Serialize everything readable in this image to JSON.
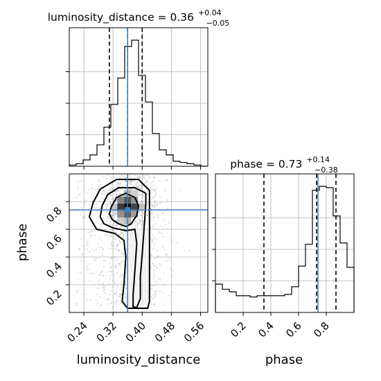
{
  "colors": {
    "truth": "#3a7ebf",
    "hist": "#000000",
    "grid": "#b0b0b0",
    "density": "#000000"
  },
  "chart_data": {
    "type": "corner",
    "parameters": [
      {
        "name": "luminosity_distance",
        "title": "luminosity_distance = 0.36",
        "upper": "+0.04",
        "lower": "−0.05",
        "range": [
          0.2,
          0.58
        ],
        "ticks": [
          "0.24",
          "0.32",
          "0.40",
          "0.48",
          "0.56"
        ],
        "tick_values": [
          0.24,
          0.32,
          0.4,
          0.48,
          0.56
        ],
        "median": 0.36,
        "quantiles": [
          0.31,
          0.36,
          0.4
        ],
        "truth": 0.36,
        "hist_bins": [
          0.2,
          0.219,
          0.238,
          0.257,
          0.276,
          0.295,
          0.314,
          0.333,
          0.352,
          0.371,
          0.39,
          0.409,
          0.428,
          0.447,
          0.466,
          0.485,
          0.504,
          0.523,
          0.542,
          0.561,
          0.58
        ],
        "hist_counts": [
          0.01,
          0.02,
          0.05,
          0.09,
          0.17,
          0.31,
          0.49,
          0.7,
          0.95,
          1.0,
          0.72,
          0.51,
          0.26,
          0.13,
          0.09,
          0.04,
          0.03,
          0.02,
          0.01,
          0.0
        ]
      },
      {
        "name": "phase",
        "title": "phase = 0.73",
        "upper": "+0.14",
        "lower": "−0.38",
        "range": [
          0.0,
          1.0
        ],
        "ticks": [
          "0.2",
          "0.4",
          "0.6",
          "0.8"
        ],
        "tick_values": [
          0.2,
          0.4,
          0.6,
          0.8
        ],
        "median": 0.73,
        "quantiles": [
          0.35,
          0.73,
          0.87
        ],
        "truth": 0.74,
        "hist_bins": [
          0.0,
          0.05,
          0.1,
          0.15,
          0.2,
          0.25,
          0.3,
          0.35,
          0.4,
          0.45,
          0.5,
          0.55,
          0.6,
          0.65,
          0.7,
          0.75,
          0.8,
          0.85,
          0.9,
          0.95,
          1.0
        ],
        "hist_counts": [
          0.22,
          0.18,
          0.16,
          0.13,
          0.13,
          0.12,
          0.13,
          0.13,
          0.13,
          0.13,
          0.14,
          0.2,
          0.36,
          0.53,
          0.95,
          0.98,
          0.97,
          0.75,
          0.54,
          0.35
        ]
      }
    ],
    "joint_y_ticks": [
      "0.2",
      "0.4",
      "0.6",
      "0.8"
    ],
    "joint_y_tick_values": [
      0.2,
      0.4,
      0.6,
      0.8
    ],
    "joint_y_range": [
      0.0,
      1.0
    ],
    "truth_point": [
      0.36,
      0.74
    ],
    "density_core": {
      "luminosity_distance": 0.36,
      "phase": 0.76
    },
    "joint_contours": [
      {
        "level": "inner",
        "points": [
          [
            0.31,
            0.71
          ],
          [
            0.315,
            0.76
          ],
          [
            0.33,
            0.83
          ],
          [
            0.355,
            0.86
          ],
          [
            0.38,
            0.83
          ],
          [
            0.39,
            0.77
          ],
          [
            0.385,
            0.7
          ],
          [
            0.37,
            0.64
          ],
          [
            0.355,
            0.62
          ],
          [
            0.335,
            0.64
          ],
          [
            0.318,
            0.67
          ]
        ]
      },
      {
        "level": "middle",
        "points": [
          [
            0.285,
            0.69
          ],
          [
            0.29,
            0.77
          ],
          [
            0.305,
            0.85
          ],
          [
            0.335,
            0.9
          ],
          [
            0.38,
            0.9
          ],
          [
            0.41,
            0.86
          ],
          [
            0.41,
            0.78
          ],
          [
            0.405,
            0.6
          ],
          [
            0.4,
            0.42
          ],
          [
            0.395,
            0.26
          ],
          [
            0.395,
            0.1
          ],
          [
            0.385,
            0.035
          ],
          [
            0.375,
            0.04
          ],
          [
            0.375,
            0.12
          ],
          [
            0.38,
            0.3
          ],
          [
            0.385,
            0.5
          ],
          [
            0.38,
            0.6
          ],
          [
            0.355,
            0.59
          ],
          [
            0.32,
            0.61
          ],
          [
            0.295,
            0.64
          ]
        ]
      },
      {
        "level": "outer",
        "points": [
          [
            0.255,
            0.69
          ],
          [
            0.265,
            0.79
          ],
          [
            0.285,
            0.89
          ],
          [
            0.33,
            0.96
          ],
          [
            0.39,
            0.96
          ],
          [
            0.42,
            0.88
          ],
          [
            0.42,
            0.74
          ],
          [
            0.42,
            0.5
          ],
          [
            0.42,
            0.25
          ],
          [
            0.42,
            0.08
          ],
          [
            0.415,
            0.03
          ],
          [
            0.36,
            0.03
          ],
          [
            0.345,
            0.08
          ],
          [
            0.35,
            0.2
          ],
          [
            0.355,
            0.4
          ],
          [
            0.35,
            0.52
          ],
          [
            0.325,
            0.57
          ],
          [
            0.275,
            0.6
          ]
        ]
      }
    ],
    "axis_labels": {
      "x1": "luminosity_distance",
      "x2": "phase",
      "y": "phase"
    },
    "grid": true
  }
}
